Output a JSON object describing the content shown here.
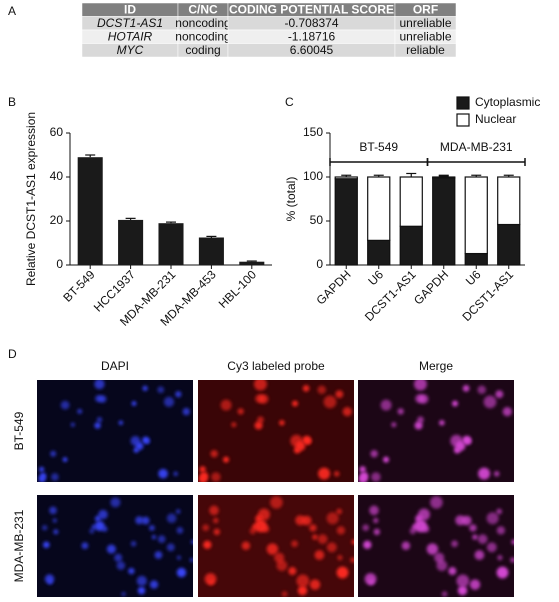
{
  "panels": [
    "A",
    "B",
    "C",
    "D"
  ],
  "table": {
    "header": [
      "ID",
      "C/NC",
      "CODING POTENTIAL SCORE",
      "ORF"
    ],
    "rows": [
      [
        "DCST1-AS1",
        "noncoding",
        "-0.708374",
        "unreliable"
      ],
      [
        "HOTAIR",
        "noncoding",
        "-1.18716",
        "unreliable"
      ],
      [
        "MYC",
        "coding",
        "6.60045",
        "reliable"
      ]
    ]
  },
  "chart_data": [
    {
      "type": "bar",
      "ylabel": "Relative DCST1-AS1 expression",
      "categories": [
        "BT-549",
        "HCC1937",
        "MDA-MB-231",
        "MDA-MB-453",
        "HBL-100"
      ],
      "values": [
        49,
        20.5,
        19,
        12.5,
        1.5
      ],
      "errors": [
        1,
        0.7,
        0.5,
        0.5,
        0.3
      ],
      "color": "#1a1a1a",
      "ylim": [
        0,
        60
      ],
      "yticks": [
        0,
        20,
        40,
        60
      ]
    },
    {
      "type": "stacked_bar",
      "ylabel": "% (total)",
      "categories": [
        "GAPDH",
        "U6",
        "DCST1-AS1",
        "GAPDH",
        "U6",
        "DCST1-AS1"
      ],
      "groups": [
        "BT-549",
        "MDA-MB-231"
      ],
      "series": [
        {
          "name": "Cytoplasmic",
          "color": "#1a1a1a",
          "values": [
            98,
            28,
            44,
            99,
            13,
            46
          ],
          "errors": [
            2,
            2,
            2,
            2,
            3,
            1
          ]
        },
        {
          "name": "Nuclear",
          "color": "#ffffff",
          "values": [
            2,
            72,
            56,
            1,
            87,
            54
          ],
          "errors": [
            2,
            2,
            4,
            2,
            2,
            2
          ]
        }
      ],
      "ylim": [
        0,
        150
      ],
      "yticks": [
        0,
        50,
        100,
        150
      ],
      "legend": "top-right"
    }
  ],
  "figure_d": {
    "columns": [
      "DAPI",
      "Cy3 labeled probe",
      "Merge"
    ],
    "rows": [
      "BT-549",
      "MDA-MB-231"
    ]
  }
}
